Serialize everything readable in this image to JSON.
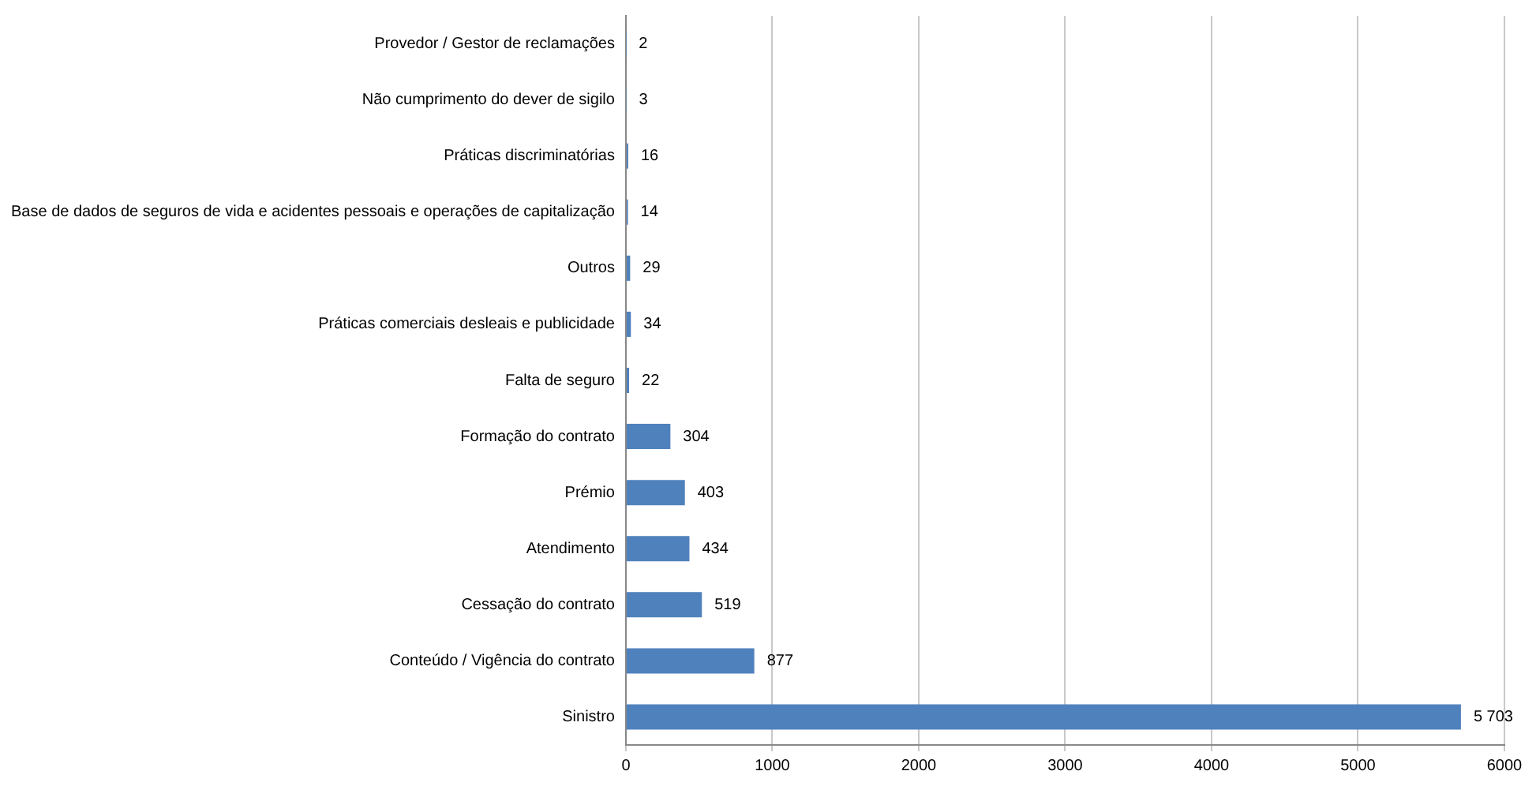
{
  "chart_data": {
    "type": "bar",
    "orientation": "horizontal",
    "categories": [
      "Provedor / Gestor de reclamações",
      "Não cumprimento do dever de sigilo",
      "Práticas discriminatórias",
      "Base de dados de seguros de vida e acidentes pessoais e operações de capitalização",
      "Outros",
      "Práticas comerciais desleais e publicidade",
      "Falta de seguro",
      "Formação do contrato",
      "Prémio",
      "Atendimento",
      "Cessação do contrato",
      "Conteúdo / Vigência do contrato",
      "Sinistro"
    ],
    "values": [
      2,
      3,
      16,
      14,
      29,
      34,
      22,
      304,
      403,
      434,
      519,
      877,
      5703
    ],
    "value_labels": [
      "2",
      "3",
      "16",
      "14",
      "29",
      "34",
      "22",
      "304",
      "403",
      "434",
      "519",
      "877",
      "5 703"
    ],
    "color": "#4f81bd",
    "xlim": [
      0,
      6000
    ],
    "xticks": [
      0,
      1000,
      2000,
      3000,
      4000,
      5000,
      6000
    ],
    "grid": "x",
    "legend": false
  }
}
